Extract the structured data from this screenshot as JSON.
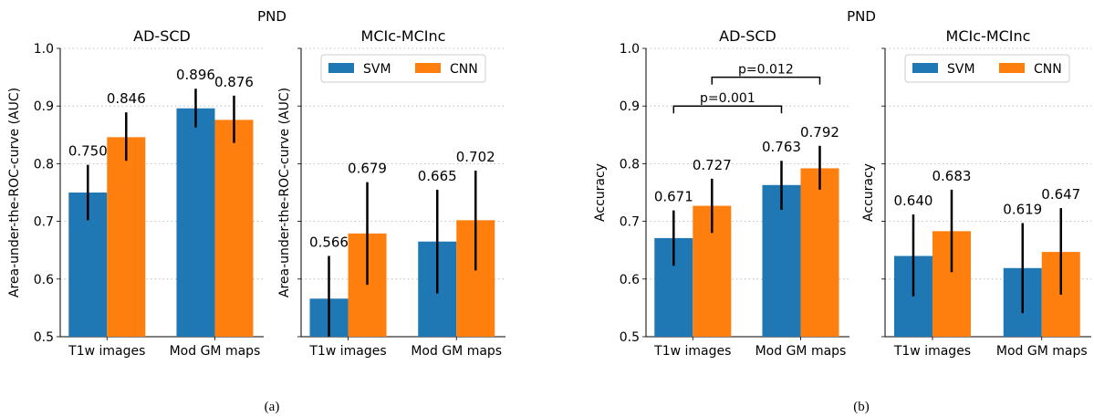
{
  "colors": {
    "svm": "#1f77b4",
    "cnn": "#ff7f0e",
    "err": "#000000",
    "grid": "#b0b0b0"
  },
  "figure": {
    "caption_a": "(a)",
    "caption_b": "(b)",
    "suptitle_a": "PND",
    "suptitle_b": "PND"
  },
  "chart_data": [
    {
      "type": "bar",
      "title": "AD-SCD",
      "ylabel": "Area-under-the-ROC-curve (AUC)",
      "ylim": [
        0.5,
        1.0
      ],
      "yticks": [
        "0.5",
        "0.6",
        "0.7",
        "0.8",
        "0.9",
        "1.0"
      ],
      "grid": "horizontal dotted",
      "categories": [
        "T1w images",
        "Mod GM maps"
      ],
      "series": [
        {
          "name": "SVM",
          "values": [
            0.75,
            0.896
          ],
          "error_low": [
            0.702,
            0.863
          ],
          "error_high": [
            0.798,
            0.93
          ],
          "labels": [
            "0.750",
            "0.896"
          ]
        },
        {
          "name": "CNN",
          "values": [
            0.846,
            0.876
          ],
          "error_low": [
            0.805,
            0.836
          ],
          "error_high": [
            0.889,
            0.918
          ],
          "labels": [
            "0.846",
            "0.876"
          ]
        }
      ]
    },
    {
      "type": "bar",
      "title": "MCIc-MCInc",
      "ylabel": "Area-under-the-ROC-curve (AUC)",
      "ylim": [
        0.5,
        1.0
      ],
      "grid": "horizontal dotted",
      "legend": "top",
      "categories": [
        "T1w images",
        "Mod GM maps"
      ],
      "series": [
        {
          "name": "SVM",
          "values": [
            0.566,
            0.665
          ],
          "error_low": [
            0.5,
            0.575
          ],
          "error_high": [
            0.64,
            0.755
          ],
          "labels": [
            "0.566",
            "0.665"
          ]
        },
        {
          "name": "CNN",
          "values": [
            0.679,
            0.702
          ],
          "error_low": [
            0.59,
            0.615
          ],
          "error_high": [
            0.768,
            0.788
          ],
          "labels": [
            "0.679",
            "0.702"
          ]
        }
      ]
    },
    {
      "type": "bar",
      "title": "AD-SCD",
      "ylabel": "Accuracy",
      "ylim": [
        0.5,
        1.0
      ],
      "yticks": [
        "0.5",
        "0.6",
        "0.7",
        "0.8",
        "0.9",
        "1.0"
      ],
      "grid": "horizontal dotted",
      "categories": [
        "T1w images",
        "Mod GM maps"
      ],
      "series": [
        {
          "name": "SVM",
          "values": [
            0.671,
            0.763
          ],
          "error_low": [
            0.623,
            0.72
          ],
          "error_high": [
            0.719,
            0.805
          ],
          "labels": [
            "0.671",
            "0.763"
          ]
        },
        {
          "name": "CNN",
          "values": [
            0.727,
            0.792
          ],
          "error_low": [
            0.68,
            0.755
          ],
          "error_high": [
            0.774,
            0.831
          ],
          "labels": [
            "0.727",
            "0.792"
          ]
        }
      ],
      "annotations": [
        {
          "text": "p=0.001",
          "from": [
            0,
            0
          ],
          "to": [
            1,
            0
          ],
          "y": 0.9,
          "text_y": 0.913
        },
        {
          "text": "p=0.012",
          "from": [
            0,
            1
          ],
          "to": [
            1,
            1
          ],
          "y": 0.95,
          "text_y": 0.963
        }
      ]
    },
    {
      "type": "bar",
      "title": "MCIc-MCInc",
      "ylabel": "Accuracy",
      "ylim": [
        0.5,
        1.0
      ],
      "grid": "horizontal dotted",
      "legend": "top",
      "categories": [
        "T1w images",
        "Mod GM maps"
      ],
      "series": [
        {
          "name": "SVM",
          "values": [
            0.64,
            0.619
          ],
          "error_low": [
            0.57,
            0.541
          ],
          "error_high": [
            0.712,
            0.697
          ],
          "labels": [
            "0.640",
            "0.619"
          ]
        },
        {
          "name": "CNN",
          "values": [
            0.683,
            0.647
          ],
          "error_low": [
            0.612,
            0.573
          ],
          "error_high": [
            0.755,
            0.723
          ],
          "labels": [
            "0.683",
            "0.647"
          ]
        }
      ]
    }
  ]
}
